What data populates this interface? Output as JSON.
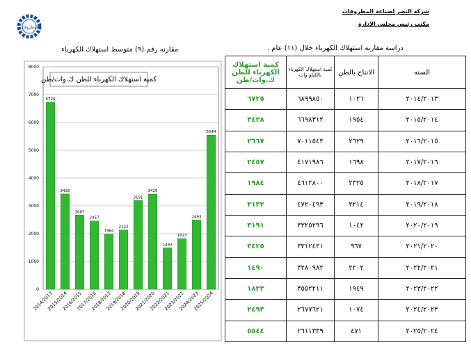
{
  "header": {
    "company": "شركة النصر لصناعة المطروقات",
    "office": "مكتب رئيس مجلس الادارة",
    "logo": "المطروقات"
  },
  "chart_title": "مقارنه رقم (٩) متوسط استهلاك الكهرباء",
  "chart_data": {
    "type": "bar",
    "title": "كمية استهلاك الكهرباء للطن ك.وات/طن",
    "categories": [
      "2014/2013",
      "2015/2014",
      "2016/2015",
      "2017/2016",
      "2018/2017",
      "2019/2018",
      "2020/2019",
      "2021/2020",
      "2022/2021",
      "2023/2022",
      "2024/2023",
      "2025/2024"
    ],
    "values": [
      6725,
      3428,
      2667,
      2457,
      1984,
      2132,
      3191,
      3425,
      1490,
      1823,
      2493,
      5544
    ],
    "color": "#33b833",
    "ylim": [
      0,
      8000
    ],
    "yticks": [
      0,
      1000,
      2000,
      3000,
      4000,
      5000,
      6000,
      7000,
      8000
    ],
    "grid": true
  },
  "table": {
    "title": "دراسة مقارنة استهلاك الكهرباء خلال (١١) عام .",
    "columns": [
      "كمية استهلاك الكهرباء للطن ك.وات/طن",
      "كمية استهلاك الكهرباء بالكيلو وات",
      "الانتاج بالطن",
      "السنه"
    ],
    "rows": [
      [
        "٦٧٢٥",
        "٦٨٩٩٨٥٠",
        "١٠٢٦",
        "٢٠١٤/٢٠١٣"
      ],
      [
        "٣٤٢٨",
        "٦٦٩٨٣١٢",
        "١٩٥٤",
        "٢٠١٥/٢٠١٤"
      ],
      [
        "٢٦٦٧",
        "٧٠١١٥٤٣",
        "٢٦٢٩",
        "٢٠١٦/٢٠١٥"
      ],
      [
        "٢٤٥٧",
        "٤١٧١٩٨٦",
        "١٦٩٨",
        "٢٠١٧/٢٠١٦"
      ],
      [
        "١٩٨٤",
        "٤٦١٢٨٠٠",
        "٢٣٢٥",
        "٢٠١٨/٢٠١٧"
      ],
      [
        "٢١٣٢",
        "٤٧٢٠٤٩٣",
        "٢٢١٤",
        "٢٠١٩/٢٠١٨"
      ],
      [
        "٣١٩١",
        "٣٣٢٥٢٩٦",
        "١٠٤٢",
        "٢٠٢٠/٢٠١٩"
      ],
      [
        "٣٤٢٥",
        "٣٣١٢٤٣١",
        "٩٦٧",
        "٢٠٢١/٢٠٢٠"
      ],
      [
        "١٤٩٠",
        "٣٢٨٠٩٨٢",
        "٢٢٠٢",
        "٢٠٢٢/٢٠٢١"
      ],
      [
        "١٨٢٣",
        "٣٥٥٢٢١١",
        "١٩٤٩",
        "٢٠٢٣/٢٠٢٢"
      ],
      [
        "٢٤٩٣",
        "٢٦٧٧٦٢١",
        "١٠٧٤",
        "٢٠٢٤/٢٠٢٣"
      ],
      [
        "٥٥٤٤",
        "٢٦١١٣٣٩",
        "٤٧١",
        "٢٠٢٥/٢٠٢٤"
      ]
    ]
  }
}
